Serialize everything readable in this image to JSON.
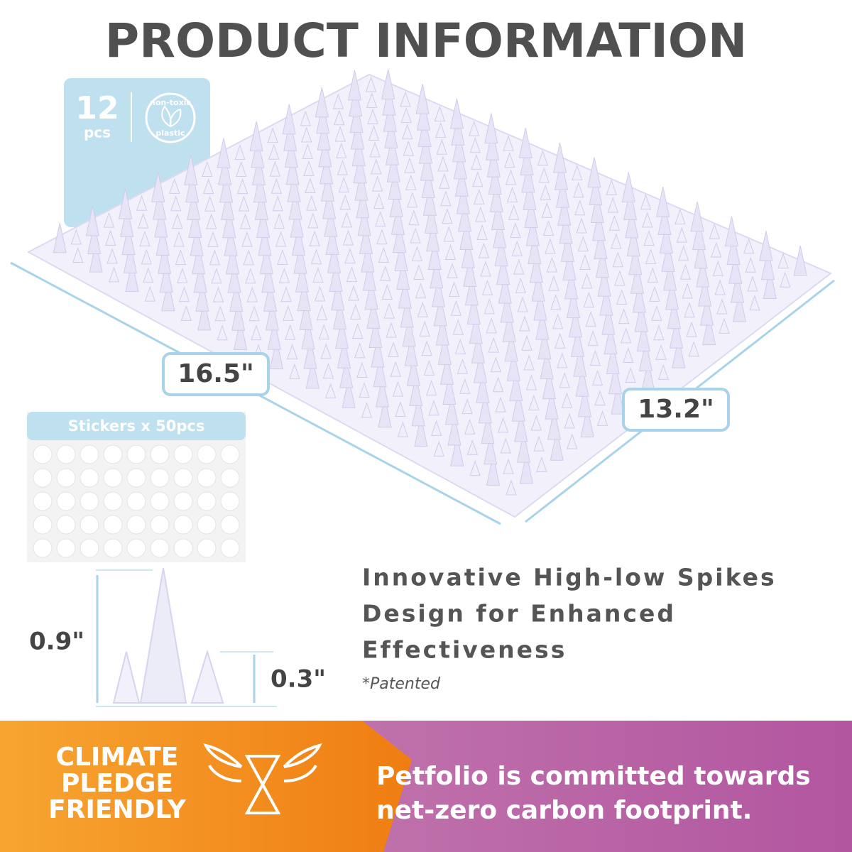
{
  "header": {
    "title": "PRODUCT INFORMATION"
  },
  "badge": {
    "count": "12",
    "unit": "pcs",
    "material_top": "non-toxic",
    "material_bottom": "plastic"
  },
  "dimensions": {
    "length": "16.5\"",
    "width": "13.2\""
  },
  "stickers": {
    "label": "Stickers x 50pcs"
  },
  "spike_heights": {
    "tall": "0.9\"",
    "short": "0.3\""
  },
  "feature": {
    "lines": [
      "Innovative High-low Spikes",
      "Design for Enhanced",
      "Effectiveness"
    ],
    "note": "*Patented"
  },
  "footer": {
    "badge_lines": [
      "CLIMATE",
      "PLEDGE",
      "FRIENDLY"
    ],
    "message_lines": [
      "Petfolio is committed towards",
      "net-zero carbon footprint."
    ]
  }
}
